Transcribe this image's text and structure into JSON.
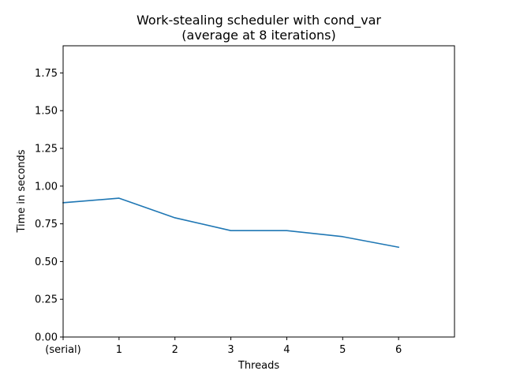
{
  "chart_data": {
    "type": "line",
    "title": [
      "Work-stealing scheduler with cond_var",
      "(average at 8 iterations)"
    ],
    "xlabel": "Threads",
    "ylabel": "Time in seconds",
    "categories": [
      "(serial)",
      "1",
      "2",
      "3",
      "4",
      "5",
      "6"
    ],
    "x": [
      0,
      1,
      2,
      3,
      4,
      5,
      6
    ],
    "xlim": [
      0,
      7
    ],
    "ylim": [
      0,
      1.93
    ],
    "yticks": [
      "0.00",
      "0.25",
      "0.50",
      "0.75",
      "1.00",
      "1.25",
      "1.50",
      "1.75"
    ],
    "series": [
      {
        "values": [
          0.89,
          0.92,
          0.79,
          0.705,
          0.705,
          0.665,
          0.595
        ],
        "color": "#1f77b4"
      }
    ],
    "grid": false,
    "legend": "none"
  }
}
